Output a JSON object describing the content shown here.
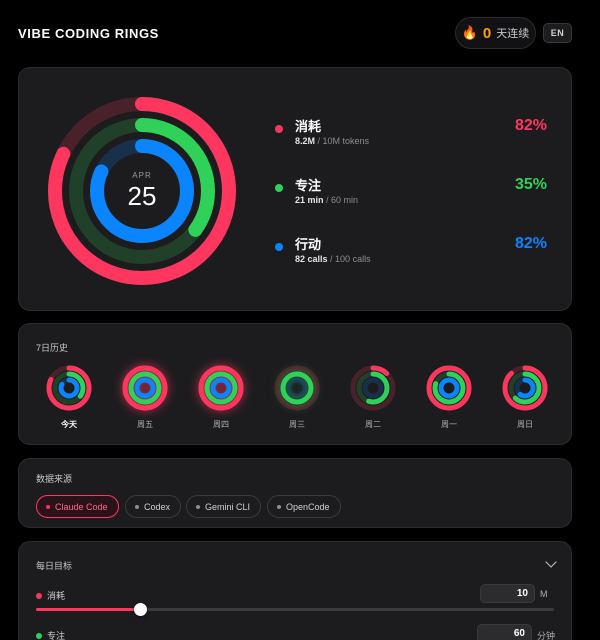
{
  "header": {
    "title": "VIBE CODING RINGS",
    "streak_count": "0",
    "streak_label": "天连续",
    "lang_label": "EN",
    "flame_icon": "flame-icon"
  },
  "colors": {
    "move": "#ff375f",
    "focus": "#30d158",
    "action": "#0a84ff"
  },
  "summary": {
    "month": "APR",
    "day": "25",
    "metrics": [
      {
        "name": "消耗",
        "value": "8.2M",
        "target": "/ 10M tokens",
        "percent": "82%",
        "fraction": 0.82
      },
      {
        "name": "专注",
        "value": "21 min",
        "target": "/ 60 min",
        "percent": "35%",
        "fraction": 0.35
      },
      {
        "name": "行动",
        "value": "82 calls",
        "target": "/ 100 calls",
        "percent": "82%",
        "fraction": 0.82
      }
    ]
  },
  "history": {
    "title": "7日历史",
    "days": [
      {
        "label": "今天",
        "today": true,
        "move": 0.82,
        "focus": 0.35,
        "action": 0.82
      },
      {
        "label": "周五",
        "today": false,
        "move": 1.0,
        "focus": 1.0,
        "action": 1.0
      },
      {
        "label": "周四",
        "today": false,
        "move": 1.0,
        "focus": 1.0,
        "action": 1.0
      },
      {
        "label": "周三",
        "today": false,
        "move": 0.0,
        "focus": 1.0,
        "action": 0.0
      },
      {
        "label": "周二",
        "today": false,
        "move": 0.12,
        "focus": 0.55,
        "action": 0.0
      },
      {
        "label": "周一",
        "today": false,
        "move": 1.0,
        "focus": 0.8,
        "action": 1.0
      },
      {
        "label": "周日",
        "today": false,
        "move": 0.88,
        "focus": 0.62,
        "action": 0.6
      }
    ]
  },
  "sources": {
    "title": "数据来源",
    "chips": [
      {
        "label": "Claude Code",
        "active": true
      },
      {
        "label": "Codex",
        "active": false
      },
      {
        "label": "Gemini CLI",
        "active": false
      },
      {
        "label": "OpenCode",
        "active": false
      }
    ]
  },
  "goals": {
    "title": "每日目标",
    "items": [
      {
        "label": "消耗",
        "value": "10",
        "unit": "M",
        "fraction": 0.2
      },
      {
        "label": "专注",
        "value": "60",
        "unit": "分钟"
      }
    ]
  }
}
